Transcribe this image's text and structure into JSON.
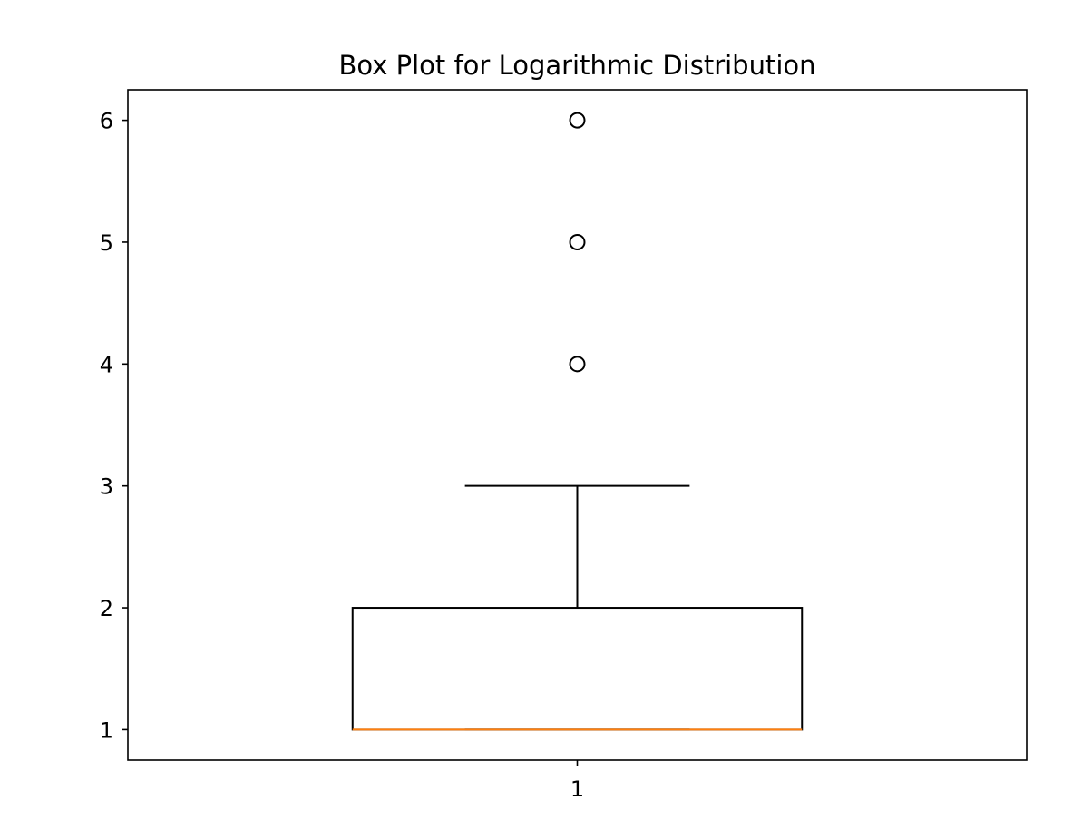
{
  "chart_data": {
    "type": "box",
    "title": "Box Plot for Logarithmic Distribution",
    "xlabel": "",
    "ylabel": "",
    "categories": [
      "1"
    ],
    "yticks": [
      1,
      2,
      3,
      4,
      5,
      6
    ],
    "ylim": [
      0.75,
      6.25
    ],
    "grid": false,
    "boxes": [
      {
        "category": "1",
        "min_whisker": 1,
        "q1": 1,
        "median": 1,
        "q3": 2,
        "max_whisker": 3,
        "outliers": [
          4,
          5,
          6
        ]
      }
    ],
    "colors": {
      "box": "#000000",
      "median": "#ff7f0e",
      "outlier": "#000000"
    }
  }
}
